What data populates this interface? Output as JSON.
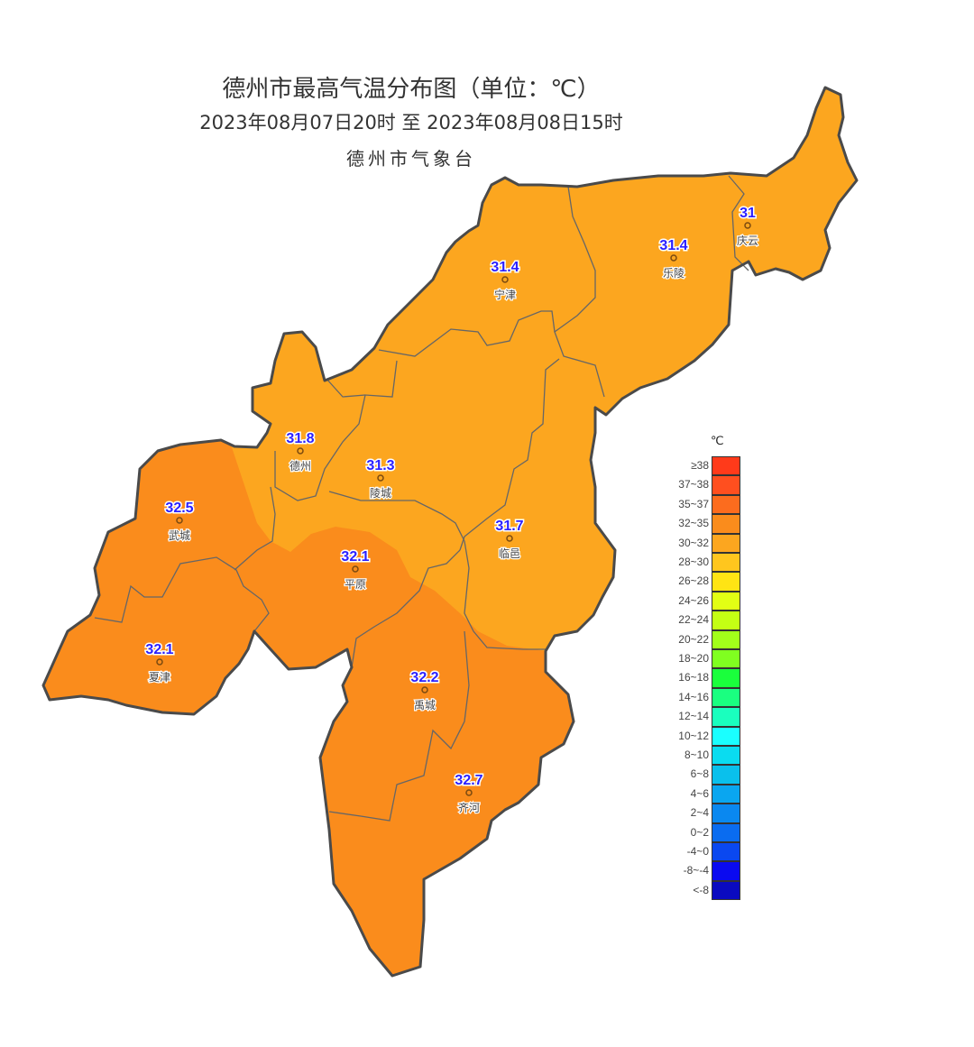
{
  "title": "德州市最高气温分布图（单位：℃）",
  "subtitle": "2023年08月07日20时  至  2023年08月08日15时",
  "issuer": "德州市气象台",
  "region_colors": {
    "30~32": "#fca61f",
    "32~35": "#fa8c1c"
  },
  "stations": [
    {
      "name": "庆云",
      "value": "31"
    },
    {
      "name": "乐陵",
      "value": "31.4"
    },
    {
      "name": "宁津",
      "value": "31.4"
    },
    {
      "name": "德州",
      "value": "31.8"
    },
    {
      "name": "陵城",
      "value": "31.3"
    },
    {
      "name": "武城",
      "value": "32.5"
    },
    {
      "name": "平原",
      "value": "32.1"
    },
    {
      "name": "临邑",
      "value": "31.7"
    },
    {
      "name": "夏津",
      "value": "32.1"
    },
    {
      "name": "禹城",
      "value": "32.2"
    },
    {
      "name": "齐河",
      "value": "32.7"
    }
  ],
  "legend": {
    "unit": "℃",
    "items": [
      {
        "label": "≥38",
        "color": "#ff3a1a"
      },
      {
        "label": "37~38",
        "color": "#ff4f1f"
      },
      {
        "label": "35~37",
        "color": "#fc6c1e"
      },
      {
        "label": "32~35",
        "color": "#fa8c1c"
      },
      {
        "label": "30~32",
        "color": "#fca61f"
      },
      {
        "label": "28~30",
        "color": "#ffc61e"
      },
      {
        "label": "26~28",
        "color": "#ffe414"
      },
      {
        "label": "24~26",
        "color": "#e2ff14"
      },
      {
        "label": "22~24",
        "color": "#c4ff14"
      },
      {
        "label": "20~22",
        "color": "#a2ff1a"
      },
      {
        "label": "18~20",
        "color": "#80ff20"
      },
      {
        "label": "16~18",
        "color": "#1aff3c"
      },
      {
        "label": "14~16",
        "color": "#1aff80"
      },
      {
        "label": "12~14",
        "color": "#1affbe"
      },
      {
        "label": "10~12",
        "color": "#1affff"
      },
      {
        "label": "8~10",
        "color": "#0adcf0"
      },
      {
        "label": "6~8",
        "color": "#0ac0ec"
      },
      {
        "label": "4~6",
        "color": "#0aa6f0"
      },
      {
        "label": "2~4",
        "color": "#0a88f0"
      },
      {
        "label": "0~2",
        "color": "#0a6cf0"
      },
      {
        "label": "-4~0",
        "color": "#0a48f0"
      },
      {
        "label": "-8~-4",
        "color": "#0a0af0"
      },
      {
        "label": "<-8",
        "color": "#0a0ac0"
      }
    ]
  }
}
